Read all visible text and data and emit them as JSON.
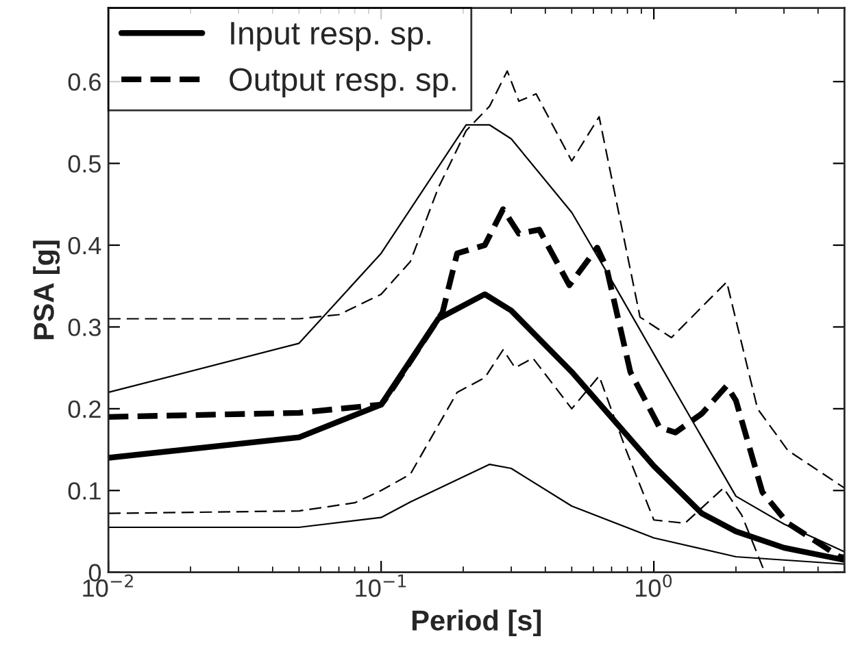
{
  "chart_data": {
    "type": "line",
    "xlabel": "Period [s]",
    "ylabel": "PSA [g]",
    "log": "x",
    "xlim": [
      0.01,
      5
    ],
    "ylim": [
      0,
      0.69
    ],
    "xticks": [
      {
        "value": 0.01,
        "label": "10$^{−2}$"
      },
      {
        "value": 0.1,
        "label": "10$^{−1}$"
      },
      {
        "value": 1,
        "label": "10$^{0}$"
      }
    ],
    "yticks": [
      0,
      0.1,
      0.2,
      0.3,
      0.4,
      0.5,
      0.6
    ],
    "grid": false,
    "legend": "top left",
    "marker": "none",
    "series": [
      {
        "name": "Input resp. sp.",
        "color": "#000000",
        "line_style": "solid",
        "x": [
          0.01,
          0.05,
          0.1,
          0.162,
          0.24,
          0.3,
          0.5,
          1,
          1.5,
          2,
          3,
          5
        ],
        "values": [
          0.14,
          0.165,
          0.205,
          0.31,
          0.34,
          0.32,
          0.245,
          0.13,
          0.072,
          0.05,
          0.03,
          0.015
        ]
      },
      {
        "name": "Output resp. sp.",
        "color": "#000000",
        "line_style": "dashed",
        "x": [
          0.01,
          0.05,
          0.1,
          0.106,
          0.168,
          0.19,
          0.24,
          0.28,
          0.32,
          0.38,
          0.49,
          0.62,
          0.67,
          0.82,
          1.05,
          1.2,
          1.5,
          1.85,
          2.0,
          2.5,
          3.1,
          4.8,
          5
        ],
        "values": [
          0.19,
          0.195,
          0.205,
          0.216,
          0.318,
          0.39,
          0.4,
          0.444,
          0.414,
          0.419,
          0.351,
          0.397,
          0.373,
          0.245,
          0.177,
          0.171,
          0.194,
          0.228,
          0.21,
          0.098,
          0.06,
          0.019,
          0.018
        ]
      },
      {
        "color": "#000000",
        "line_style": "solid",
        "x": [
          0.01,
          0.05,
          0.1,
          0.205,
          0.25,
          0.3,
          0.5,
          0.7,
          1,
          1.5,
          2,
          3,
          5
        ],
        "values": [
          0.22,
          0.28,
          0.39,
          0.547,
          0.547,
          0.53,
          0.44,
          0.357,
          0.267,
          0.165,
          0.093,
          0.059,
          0.025
        ]
      },
      {
        "color": "#000000",
        "line_style": "solid",
        "x": [
          0.01,
          0.05,
          0.1,
          0.128,
          0.25,
          0.3,
          0.5,
          1,
          2,
          5
        ],
        "values": [
          0.055,
          0.055,
          0.067,
          0.086,
          0.132,
          0.127,
          0.081,
          0.042,
          0.019,
          0.01
        ]
      },
      {
        "color": "#000000",
        "line_style": "dashed",
        "x": [
          0.01,
          0.05,
          0.07,
          0.1,
          0.128,
          0.162,
          0.205,
          0.25,
          0.29,
          0.32,
          0.37,
          0.5,
          0.63,
          0.89,
          1.16,
          1.85,
          2.4,
          3.1,
          5
        ],
        "values": [
          0.31,
          0.31,
          0.315,
          0.34,
          0.38,
          0.47,
          0.54,
          0.57,
          0.613,
          0.576,
          0.585,
          0.503,
          0.557,
          0.312,
          0.287,
          0.355,
          0.2,
          0.149,
          0.103
        ]
      },
      {
        "color": "#000000",
        "line_style": "dashed",
        "x": [
          0.01,
          0.05,
          0.08,
          0.1,
          0.128,
          0.19,
          0.24,
          0.28,
          0.31,
          0.36,
          0.5,
          0.63,
          0.79,
          1.0,
          1.3,
          1.8,
          2.1,
          2.55
        ],
        "values": [
          0.072,
          0.075,
          0.085,
          0.1,
          0.12,
          0.22,
          0.238,
          0.272,
          0.25,
          0.262,
          0.2,
          0.24,
          0.15,
          0.064,
          0.06,
          0.103,
          0.07,
          0.0
        ]
      }
    ]
  }
}
